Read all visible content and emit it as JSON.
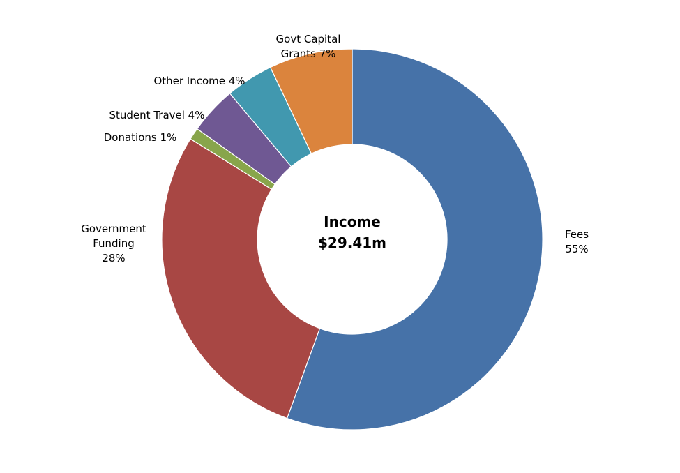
{
  "chart_data": {
    "type": "pie",
    "variant": "donut",
    "center_text": [
      "Income",
      "$29.41m"
    ],
    "slices": [
      {
        "name": "Fees",
        "value": 55,
        "label_lines": [
          "Fees",
          "55%"
        ],
        "color": "#4672A8"
      },
      {
        "name": "Government Funding",
        "value": 28,
        "label_lines": [
          "Government",
          "Funding",
          "28%"
        ],
        "color": "#A84744"
      },
      {
        "name": "Donations",
        "value": 1,
        "label_lines": [
          "Donations 1%"
        ],
        "color": "#88A54B"
      },
      {
        "name": "Student Travel",
        "value": 4,
        "label_lines": [
          "Student Travel 4%"
        ],
        "color": "#6F5893"
      },
      {
        "name": "Other Income",
        "value": 4,
        "label_lines": [
          "Other Income 4%"
        ],
        "color": "#4198AF"
      },
      {
        "name": "Govt Capital Grants",
        "value": 7,
        "label_lines": [
          "Govt Capital",
          "Grants 7%"
        ],
        "color": "#DB843D"
      }
    ],
    "direction": "clockwise-from-top",
    "legend": "none"
  }
}
